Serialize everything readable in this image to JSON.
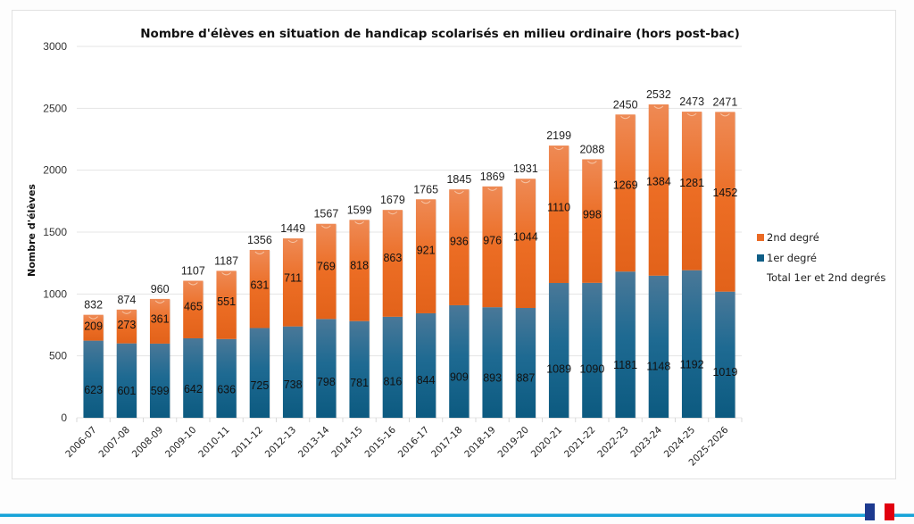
{
  "chart_data": {
    "type": "bar",
    "stacked": true,
    "title": "Nombre d'élèves en situation de handicap scolarisés en milieu ordinaire (hors post-bac)",
    "xlabel": "",
    "ylabel": "Nombre d'élèves",
    "ylim": [
      0,
      3000
    ],
    "yticks": [
      0,
      500,
      1000,
      1500,
      2000,
      2500,
      3000
    ],
    "grid": true,
    "legend_position": "right",
    "categories": [
      "2006-07",
      "2007-08",
      "2008-09",
      "2009-10",
      "2010-11",
      "2011-12",
      "2012-13",
      "2013-14",
      "2014-15",
      "2015-16",
      "2016-17",
      "2017-18",
      "2018-19",
      "2019-20",
      "2020-21",
      "2021-22",
      "2022-23",
      "2023-24",
      "2024-25",
      "2025-2026"
    ],
    "series": [
      {
        "name": "1er degré",
        "color": "#0f5e86",
        "values": [
          623,
          601,
          599,
          642,
          636,
          725,
          738,
          798,
          781,
          816,
          844,
          909,
          893,
          887,
          1089,
          1090,
          1181,
          1148,
          1192,
          1019
        ]
      },
      {
        "name": "2nd degré",
        "color": "#ea6a25",
        "values": [
          209,
          273,
          361,
          465,
          551,
          631,
          711,
          769,
          818,
          863,
          921,
          936,
          976,
          1044,
          1110,
          998,
          1269,
          1384,
          1281,
          1452
        ]
      }
    ],
    "totals": {
      "name": "Total 1er et 2nd degrés",
      "values": [
        832,
        874,
        960,
        1107,
        1187,
        1356,
        1449,
        1567,
        1599,
        1679,
        1765,
        1845,
        1869,
        1931,
        2199,
        2088,
        2450,
        2532,
        2473,
        2471
      ]
    },
    "legend": [
      {
        "label": "2nd degré",
        "color": "#ea6a25"
      },
      {
        "label": "1er degré",
        "color": "#0f5e86"
      },
      {
        "label": "Total 1er et 2nd degrés",
        "color": null
      }
    ]
  },
  "page": {
    "accent_line_color": "#16a3d8",
    "logo": "marianne-logo"
  }
}
